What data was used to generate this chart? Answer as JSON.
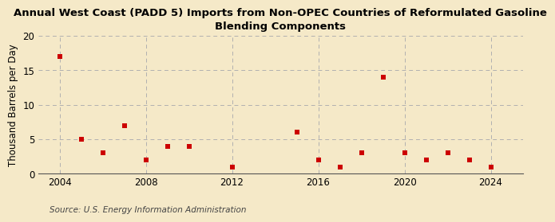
{
  "title_line1": "Annual West Coast (PADD 5) Imports from Non-OPEC Countries of Reformulated Gasoline",
  "title_line2": "Blending Components",
  "ylabel": "Thousand Barrels per Day",
  "source": "Source: U.S. Energy Information Administration",
  "background_color": "#f5e9c8",
  "plot_bg_color": "#f5e9c8",
  "marker_color": "#cc0000",
  "x_data": [
    2004,
    2005,
    2006,
    2007,
    2008,
    2009,
    2010,
    2012,
    2015,
    2016,
    2017,
    2018,
    2019,
    2020,
    2021,
    2022,
    2023,
    2024
  ],
  "y_data": [
    17,
    5,
    3,
    7,
    2,
    4,
    4,
    1,
    6,
    2,
    1,
    3,
    14,
    3,
    2,
    3,
    2,
    1
  ],
  "xlim": [
    2003.0,
    2025.5
  ],
  "ylim": [
    0,
    20
  ],
  "yticks": [
    0,
    5,
    10,
    15,
    20
  ],
  "xticks": [
    2004,
    2008,
    2012,
    2016,
    2020,
    2024
  ],
  "title_fontsize": 9.5,
  "axis_fontsize": 8.5,
  "source_fontsize": 7.5,
  "grid_color": "#b0b0b0",
  "spine_color": "#555555"
}
